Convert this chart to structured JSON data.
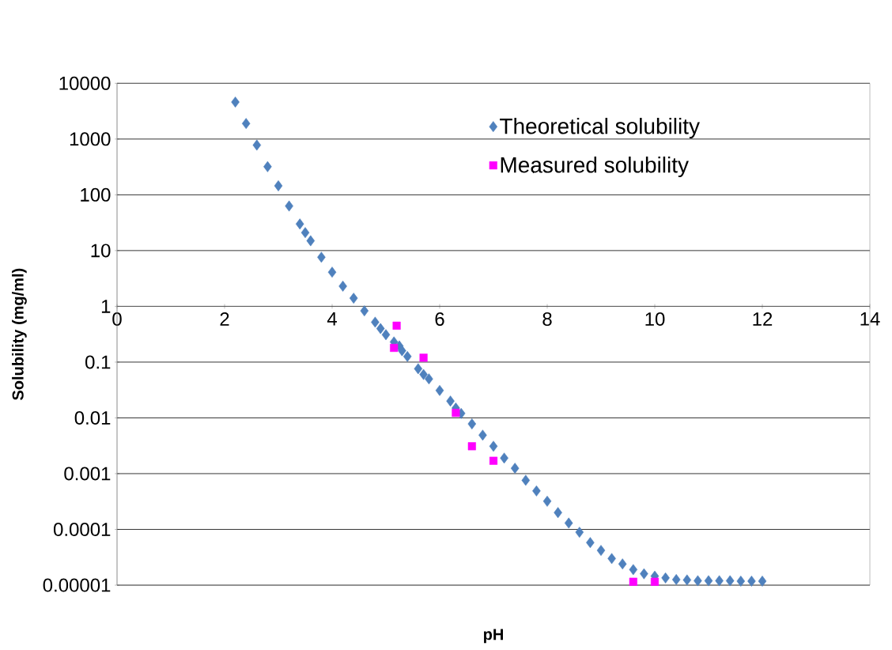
{
  "chart_data": {
    "type": "scatter",
    "xlabel": "pH",
    "ylabel": "Solubility (mg/ml)",
    "xlim": [
      0,
      14
    ],
    "xticks": [
      0,
      2,
      4,
      6,
      8,
      10,
      12,
      14
    ],
    "ylim": [
      1e-05,
      10000
    ],
    "yticks": [
      {
        "value": 1e-05,
        "label": "0.00001"
      },
      {
        "value": 0.0001,
        "label": "0.0001"
      },
      {
        "value": 0.001,
        "label": "0.001"
      },
      {
        "value": 0.01,
        "label": "0.01"
      },
      {
        "value": 0.1,
        "label": "0.1"
      },
      1,
      10,
      100,
      1000,
      10000
    ],
    "log": "y",
    "grid": "y",
    "legend": "top right",
    "series": [
      {
        "name": "Theoretical solubility",
        "color": "#4f81bd",
        "marker": "diamond",
        "x": [
          2.2,
          2.4,
          2.6,
          2.8,
          3.0,
          3.2,
          3.4,
          3.5,
          3.6,
          3.8,
          4.0,
          4.2,
          4.4,
          4.6,
          4.8,
          4.9,
          5.0,
          5.15,
          5.25,
          5.3,
          5.4,
          5.6,
          5.7,
          5.8,
          6.0,
          6.2,
          6.3,
          6.4,
          6.6,
          6.8,
          7.0,
          7.2,
          7.4,
          7.6,
          7.8,
          8.0,
          8.2,
          8.4,
          8.6,
          8.8,
          9.0,
          9.2,
          9.4,
          9.6,
          9.8,
          10.0,
          10.2,
          10.4,
          10.6,
          10.8,
          11.0,
          11.2,
          11.4,
          11.6,
          11.8,
          12.0
        ],
        "values": [
          4600,
          1900,
          780,
          320,
          145,
          63,
          30,
          21,
          15,
          7.6,
          4.1,
          2.3,
          1.4,
          0.83,
          0.52,
          0.4,
          0.31,
          0.23,
          0.195,
          0.16,
          0.126,
          0.076,
          0.06,
          0.05,
          0.031,
          0.02,
          0.015,
          0.012,
          0.0078,
          0.0049,
          0.0031,
          0.0019,
          0.00125,
          0.00076,
          0.00049,
          0.00032,
          0.0002,
          0.00013,
          8.9e-05,
          5.8e-05,
          4.2e-05,
          3e-05,
          2.4e-05,
          1.9e-05,
          1.6e-05,
          1.45e-05,
          1.35e-05,
          1.26e-05,
          1.24e-05,
          1.2e-05,
          1.2e-05,
          1.2e-05,
          1.2e-05,
          1.18e-05,
          1.18e-05,
          1.18e-05
        ]
      },
      {
        "name": "Measured solubility",
        "color": "#ff00ff",
        "marker": "square",
        "x": [
          5.15,
          5.2,
          5.7,
          6.3,
          6.6,
          7.0,
          9.6,
          10.0
        ],
        "values": [
          0.18,
          0.45,
          0.12,
          0.0123,
          0.0031,
          0.0017,
          1.15e-05,
          1.15e-05
        ]
      }
    ]
  }
}
